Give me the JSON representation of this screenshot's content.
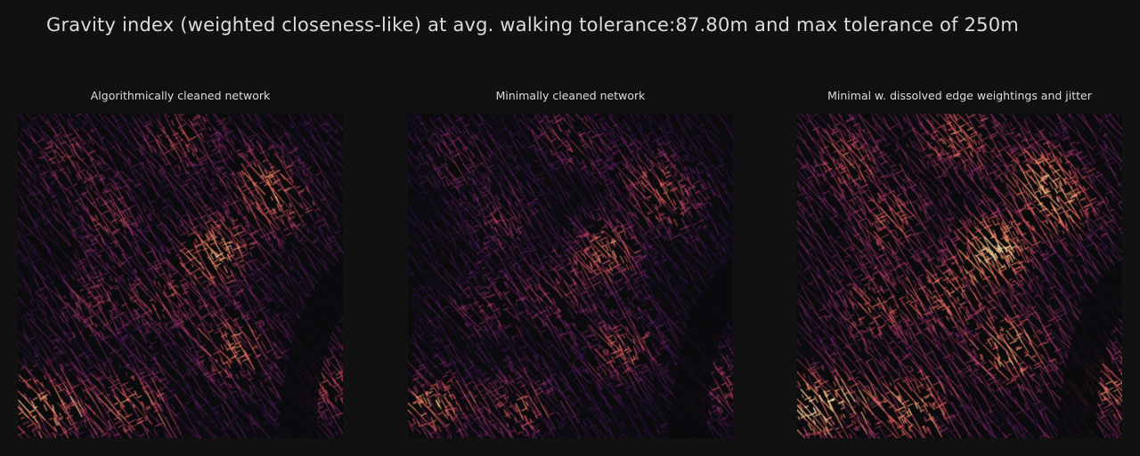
{
  "figure": {
    "title": "Gravity index (weighted closeness-like) at avg. walking tolerance:87.80m and max tolerance of 250m"
  },
  "colormap": {
    "name": "magma",
    "stops": [
      "#0b0b0d",
      "#2c115f",
      "#721f81",
      "#b73779",
      "#f1605d",
      "#feb078",
      "#fcfdbf"
    ]
  },
  "panels": [
    {
      "title": "Algorithmically cleaned network",
      "intensity": 0.55,
      "seed": 11
    },
    {
      "title": "Minimally cleaned network",
      "intensity": 0.42,
      "seed": 23
    },
    {
      "title": "Minimal w. dissolved edge weightings and jitter",
      "intensity": 0.72,
      "seed": 37
    }
  ]
}
